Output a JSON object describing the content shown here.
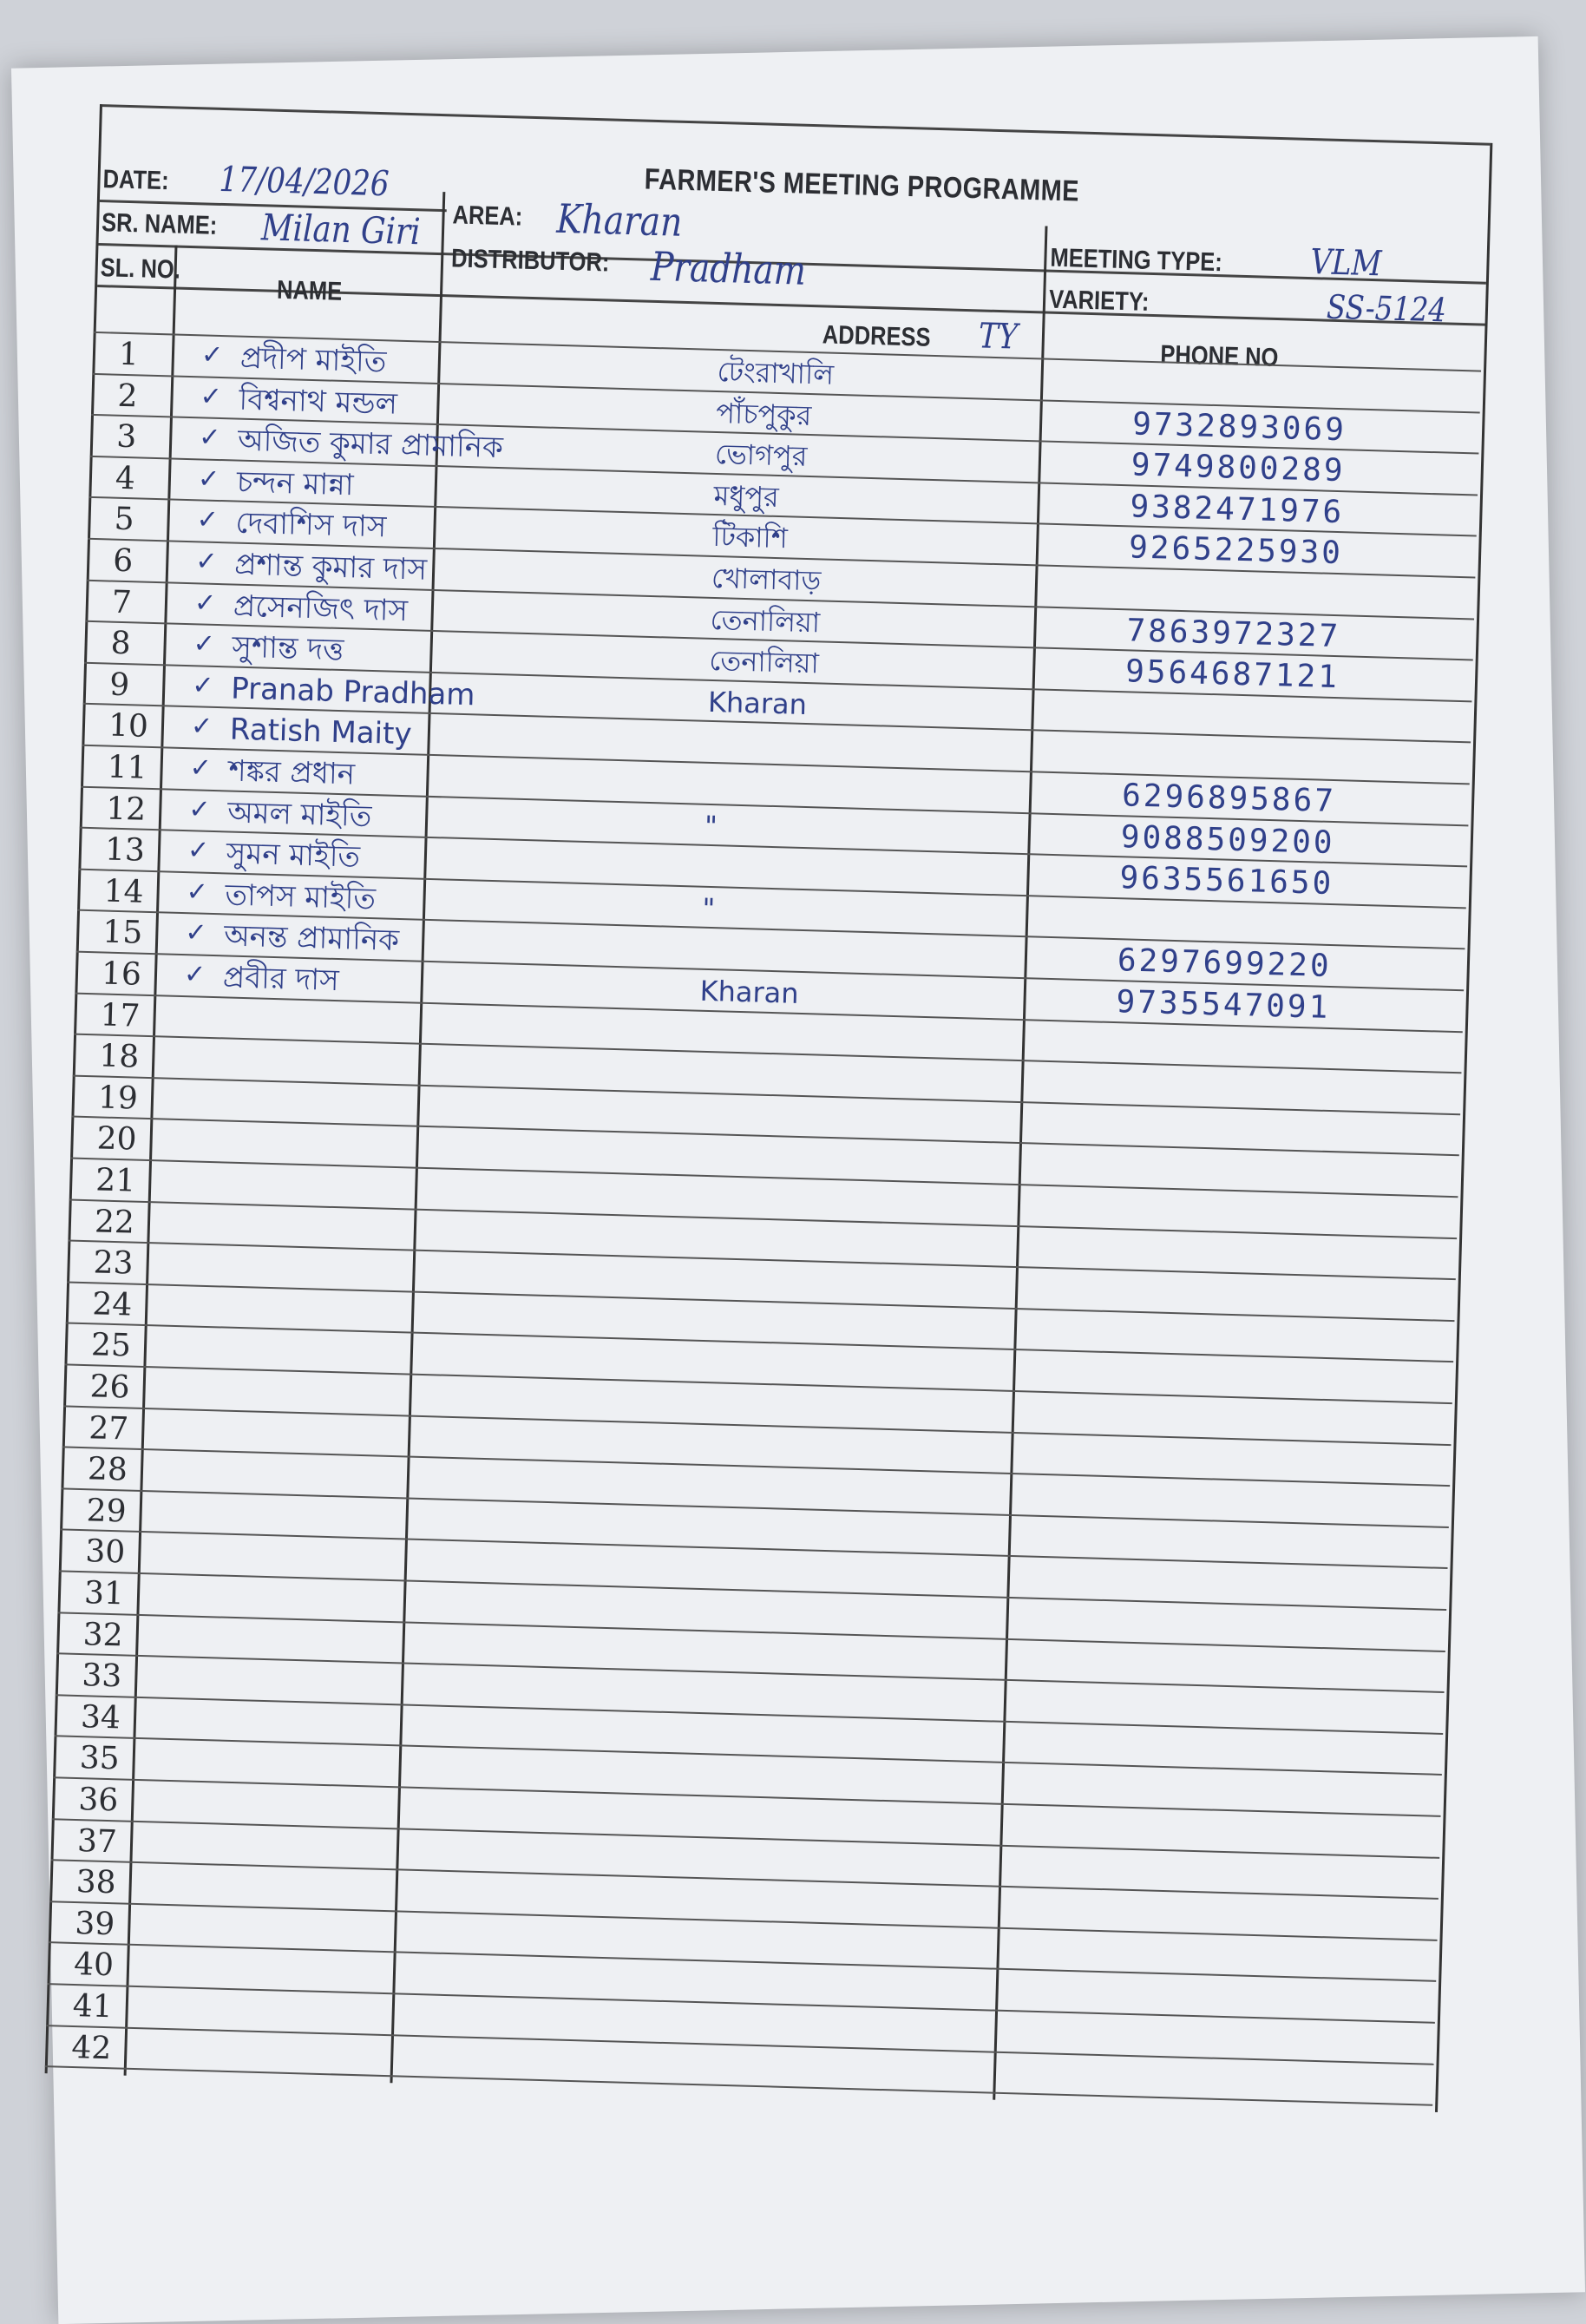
{
  "form": {
    "title": "FARMER'S MEETING PROGRAMME",
    "date_label": "DATE:",
    "date_value": "17/04/2026",
    "sr_name_label": "SR. NAME:",
    "sr_name_value": "Milan Giri",
    "area_label": "AREA:",
    "area_value": "Kharan",
    "distributor_label": "DISTRIBUTOR:",
    "distributor_value": "Pradham",
    "meeting_type_label": "MEETING TYPE:",
    "meeting_type_value": "VLM",
    "variety_label": "VARIETY:",
    "variety_value": "SS-5124",
    "address_note": "TY"
  },
  "columns": {
    "sl_no": "SL. NO.",
    "name": "NAME",
    "address": "ADDRESS",
    "phone": "PHONE NO"
  },
  "rows": [
    {
      "sl": "1",
      "check": "✓",
      "name": "প্রদীপ মাইতি",
      "address": "টেংরাখালি",
      "phone": ""
    },
    {
      "sl": "2",
      "check": "✓",
      "name": "বিশ্বনাথ মন্ডল",
      "address": "পাঁচপুকুর",
      "phone": "9732893069"
    },
    {
      "sl": "3",
      "check": "✓",
      "name": "অজিত কুমার প্রামানিক",
      "address": "ভোগপুর",
      "phone": "9749800289"
    },
    {
      "sl": "4",
      "check": "✓",
      "name": "চন্দন মান্না",
      "address": "মধুপুর",
      "phone": "9382471976"
    },
    {
      "sl": "5",
      "check": "✓",
      "name": "দেবাশিস দাস",
      "address": "টিকাশি",
      "phone": "9265225930"
    },
    {
      "sl": "6",
      "check": "✓",
      "name": "প্রশান্ত কুমার দাস",
      "address": "খোলাবাড়",
      "phone": ""
    },
    {
      "sl": "7",
      "check": "✓",
      "name": "প্রসেনজিৎ দাস",
      "address": "তেনালিয়া",
      "phone": "7863972327"
    },
    {
      "sl": "8",
      "check": "✓",
      "name": "সুশান্ত দত্ত",
      "address": "তেনালিয়া",
      "phone": "9564687121"
    },
    {
      "sl": "9",
      "check": "✓",
      "name": "Pranab Pradham",
      "address": "Kharan",
      "phone": ""
    },
    {
      "sl": "10",
      "check": "✓",
      "name": "Ratish Maity",
      "address": "",
      "phone": ""
    },
    {
      "sl": "11",
      "check": "✓",
      "name": "শঙ্কর প্রধান",
      "address": "",
      "phone": "6296895867"
    },
    {
      "sl": "12",
      "check": "✓",
      "name": "অমল মাইতি",
      "address": "\"",
      "phone": "9088509200"
    },
    {
      "sl": "13",
      "check": "✓",
      "name": "সুমন মাইতি",
      "address": "",
      "phone": "9635561650"
    },
    {
      "sl": "14",
      "check": "✓",
      "name": "তাপস মাইতি",
      "address": "\"",
      "phone": ""
    },
    {
      "sl": "15",
      "check": "✓",
      "name": "অনন্ত প্রামানিক",
      "address": "",
      "phone": "6297699220"
    },
    {
      "sl": "16",
      "check": "✓",
      "name": "প্রবীর দাস",
      "address": "Kharan",
      "phone": "9735547091"
    },
    {
      "sl": "17",
      "check": "",
      "name": "",
      "address": "",
      "phone": ""
    },
    {
      "sl": "18",
      "check": "",
      "name": "",
      "address": "",
      "phone": ""
    },
    {
      "sl": "19",
      "check": "",
      "name": "",
      "address": "",
      "phone": ""
    },
    {
      "sl": "20",
      "check": "",
      "name": "",
      "address": "",
      "phone": ""
    },
    {
      "sl": "21",
      "check": "",
      "name": "",
      "address": "",
      "phone": ""
    },
    {
      "sl": "22",
      "check": "",
      "name": "",
      "address": "",
      "phone": ""
    },
    {
      "sl": "23",
      "check": "",
      "name": "",
      "address": "",
      "phone": ""
    },
    {
      "sl": "24",
      "check": "",
      "name": "",
      "address": "",
      "phone": ""
    },
    {
      "sl": "25",
      "check": "",
      "name": "",
      "address": "",
      "phone": ""
    },
    {
      "sl": "26",
      "check": "",
      "name": "",
      "address": "",
      "phone": ""
    },
    {
      "sl": "27",
      "check": "",
      "name": "",
      "address": "",
      "phone": ""
    },
    {
      "sl": "28",
      "check": "",
      "name": "",
      "address": "",
      "phone": ""
    },
    {
      "sl": "29",
      "check": "",
      "name": "",
      "address": "",
      "phone": ""
    },
    {
      "sl": "30",
      "check": "",
      "name": "",
      "address": "",
      "phone": ""
    },
    {
      "sl": "31",
      "check": "",
      "name": "",
      "address": "",
      "phone": ""
    },
    {
      "sl": "32",
      "check": "",
      "name": "",
      "address": "",
      "phone": ""
    },
    {
      "sl": "33",
      "check": "",
      "name": "",
      "address": "",
      "phone": ""
    },
    {
      "sl": "34",
      "check": "",
      "name": "",
      "address": "",
      "phone": ""
    },
    {
      "sl": "35",
      "check": "",
      "name": "",
      "address": "",
      "phone": ""
    },
    {
      "sl": "36",
      "check": "",
      "name": "",
      "address": "",
      "phone": ""
    },
    {
      "sl": "37",
      "check": "",
      "name": "",
      "address": "",
      "phone": ""
    },
    {
      "sl": "38",
      "check": "",
      "name": "",
      "address": "",
      "phone": ""
    },
    {
      "sl": "39",
      "check": "",
      "name": "",
      "address": "",
      "phone": ""
    },
    {
      "sl": "40",
      "check": "",
      "name": "",
      "address": "",
      "phone": ""
    },
    {
      "sl": "41",
      "check": "",
      "name": "",
      "address": "",
      "phone": ""
    },
    {
      "sl": "42",
      "check": "",
      "name": "",
      "address": "",
      "phone": ""
    }
  ]
}
